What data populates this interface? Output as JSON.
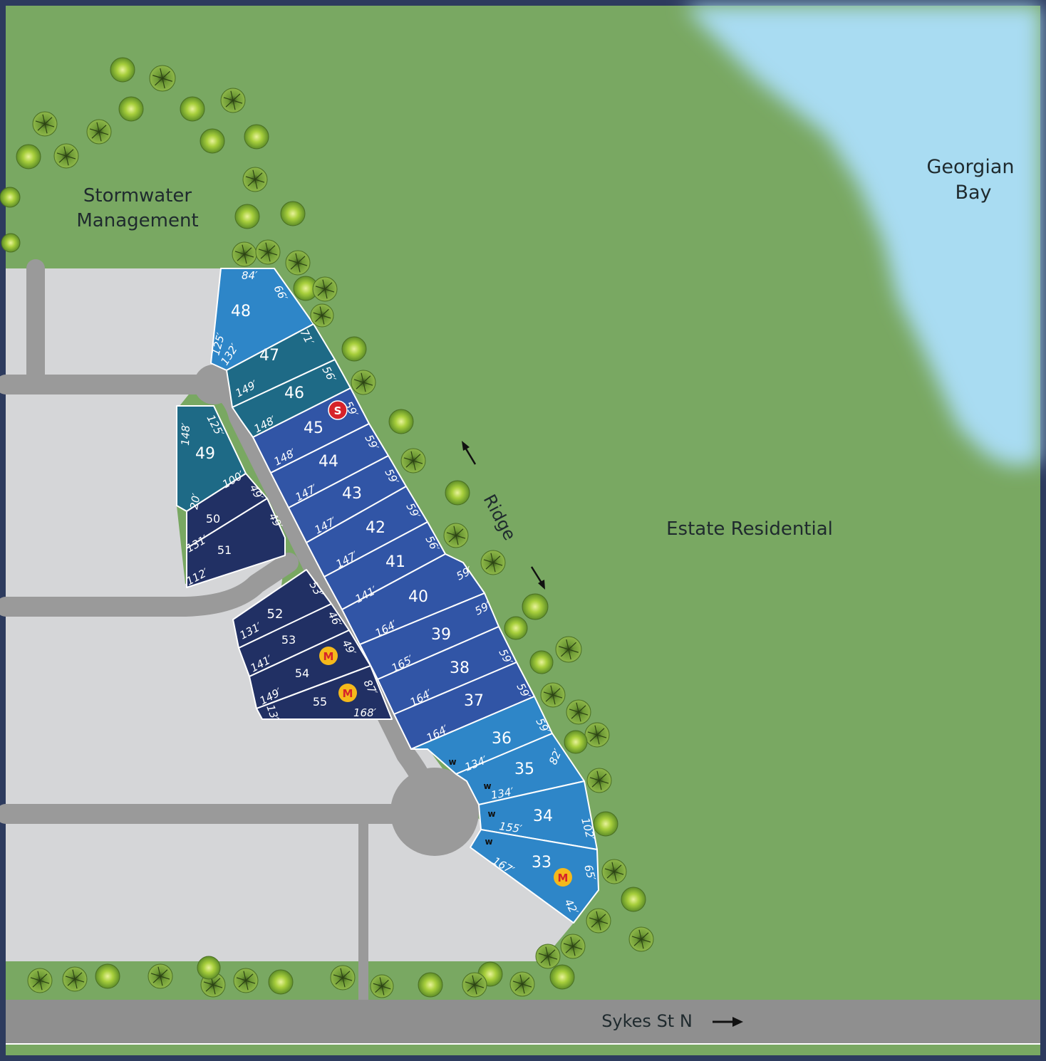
{
  "labels": {
    "stormwater_line1": "Stormwater",
    "stormwater_line2": "Management",
    "bay_line1": "Georgian",
    "bay_line2": "Bay",
    "estate": "Estate Residential",
    "ridge": "Ridge",
    "street": "Sykes St N"
  },
  "colors": {
    "grass": "#79a862",
    "water": "#a9dcf2",
    "road": "#9a9a9a",
    "lot_area": "#d5d6d8",
    "lot_light_blue": "#2e86c8",
    "lot_teal": "#1e6a86",
    "lot_royal_blue": "#3155a6",
    "lot_navy": "#213064",
    "tree_light": "#9acb3a",
    "tree_dark": "#5f8a2f",
    "badge_m": "#f5b91b",
    "badge_s": "#d6232a"
  },
  "lots": [
    {
      "id": "48",
      "color": "light_blue"
    },
    {
      "id": "47",
      "color": "teal"
    },
    {
      "id": "46",
      "color": "teal"
    },
    {
      "id": "45",
      "color": "royal_blue"
    },
    {
      "id": "44",
      "color": "royal_blue"
    },
    {
      "id": "43",
      "color": "royal_blue"
    },
    {
      "id": "42",
      "color": "royal_blue"
    },
    {
      "id": "41",
      "color": "royal_blue"
    },
    {
      "id": "40",
      "color": "royal_blue"
    },
    {
      "id": "39",
      "color": "royal_blue"
    },
    {
      "id": "38",
      "color": "royal_blue"
    },
    {
      "id": "37",
      "color": "royal_blue"
    },
    {
      "id": "36",
      "color": "light_blue"
    },
    {
      "id": "35",
      "color": "light_blue"
    },
    {
      "id": "34",
      "color": "light_blue"
    },
    {
      "id": "33",
      "color": "light_blue"
    },
    {
      "id": "49",
      "color": "teal"
    },
    {
      "id": "50",
      "color": "navy"
    },
    {
      "id": "51",
      "color": "navy"
    },
    {
      "id": "52",
      "color": "navy"
    },
    {
      "id": "53",
      "color": "navy"
    },
    {
      "id": "54",
      "color": "navy"
    },
    {
      "id": "55",
      "color": "navy"
    }
  ],
  "dimensions": [
    "84′",
    "66′",
    "125′",
    "132′",
    "71′",
    "149′",
    "56′",
    "148′",
    "59′",
    "148′",
    "59′",
    "147′",
    "59′",
    "147′",
    "59′",
    "147′",
    "56′",
    "141′",
    "59′",
    "164′",
    "59′",
    "165′",
    "59′",
    "164′",
    "59′",
    "164′",
    "59′",
    "134′",
    "82′",
    "134′",
    "155′",
    "102′",
    "167′",
    "65′",
    "42′",
    "148′",
    "125′",
    "100′",
    "20′",
    "49′",
    "49′",
    "131′",
    "112′",
    "53′",
    "46′",
    "131′",
    "49′",
    "141′",
    "87′",
    "149′",
    "13′",
    "168′"
  ],
  "markers": [
    {
      "type": "S",
      "lot": "45"
    },
    {
      "type": "M",
      "lot": "54"
    },
    {
      "type": "M",
      "lot": "55"
    },
    {
      "type": "M",
      "lot": "33"
    },
    {
      "type": "w",
      "lot": "36"
    },
    {
      "type": "w",
      "lot": "35"
    },
    {
      "type": "w",
      "lot": "34"
    },
    {
      "type": "w",
      "lot": "33"
    }
  ]
}
